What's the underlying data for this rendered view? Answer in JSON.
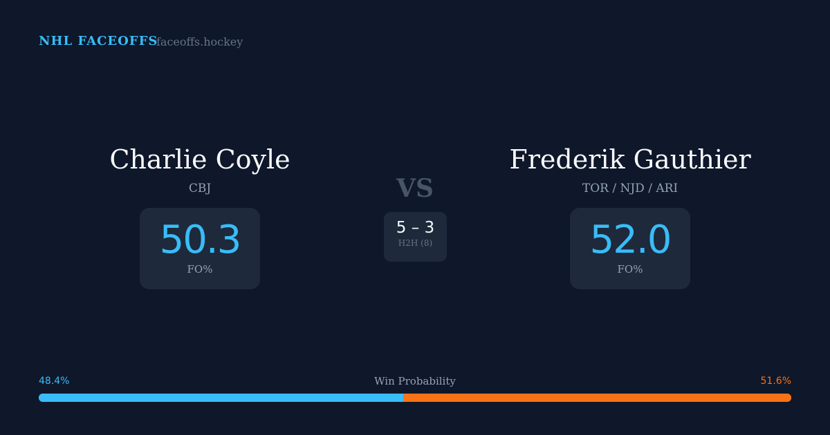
{
  "header": {
    "brand": "NHL FACEOFFS",
    "site": "faceoffs.hockey"
  },
  "player1": {
    "name": "Charlie Coyle",
    "team": "CBJ",
    "fo_pct": "50.3",
    "fo_label": "FO%"
  },
  "player2": {
    "name": "Frederik Gauthier",
    "team": "TOR / NJD / ARI",
    "fo_pct": "52.0",
    "fo_label": "FO%"
  },
  "versus": {
    "label": "VS",
    "h2h_score": "5 – 3",
    "h2h_label": "H2H (8)"
  },
  "win_probability": {
    "label": "Win Probability",
    "left_text": "48.4%",
    "right_text": "51.6%",
    "left_value": 48.4,
    "right_value": 51.6
  },
  "colors": {
    "background": "#0f172a",
    "player1_accent": "#38bdf8",
    "player2_accent": "#f97316",
    "card": "#1e293b"
  }
}
